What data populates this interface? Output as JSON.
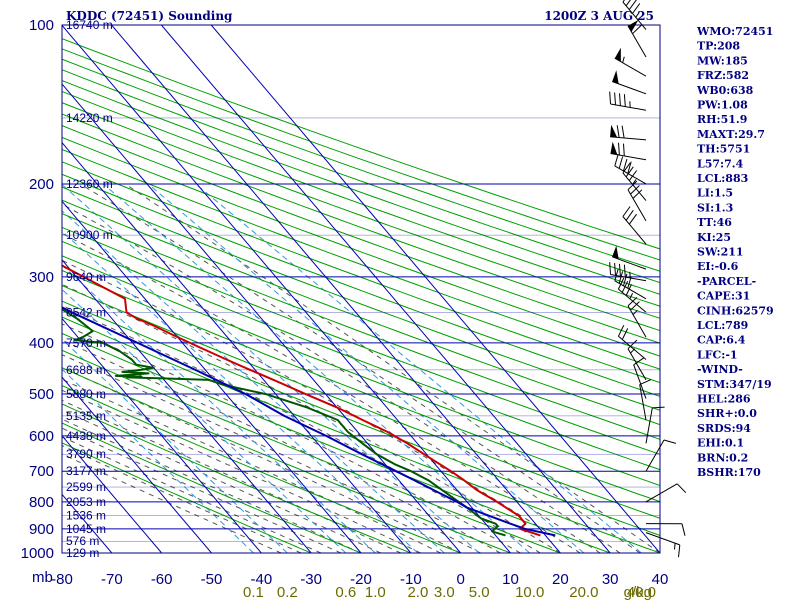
{
  "chart_data": {
    "type": "line",
    "title": "KDDC (72451) Sounding",
    "valid_time": "1200Z  3 AUG 25",
    "pressure_unit_label": "mb",
    "mixing_unit_label": "g/kg",
    "y_axis": {
      "scale": "log",
      "range": [
        1000,
        100
      ]
    },
    "x_axis": {
      "range": [
        -80,
        40
      ]
    },
    "pressure_ticks": [
      "100",
      "200",
      "300",
      "400",
      "500",
      "600",
      "700",
      "800",
      "900",
      "1000"
    ],
    "pressure_values": [
      100,
      200,
      300,
      400,
      500,
      600,
      700,
      800,
      900,
      1000
    ],
    "temperature_ticks": [
      "-80",
      "-70",
      "-60",
      "-50",
      "-40",
      "-30",
      "-20",
      "-10",
      "0",
      "10",
      "20",
      "30",
      "40"
    ],
    "temperature_values": [
      -80,
      -70,
      -60,
      -50,
      -40,
      -30,
      -20,
      -10,
      0,
      10,
      20,
      30,
      40
    ],
    "mixing_ratio_labels": [
      "0.1",
      "0.2",
      "0.6",
      "1.0",
      "2.0",
      "3.0",
      "5.0",
      "10.0",
      "20.0",
      "40.0"
    ],
    "mixing_ratio_values": [
      0.1,
      0.2,
      0.6,
      1.0,
      2.0,
      3.0,
      5.0,
      10.0,
      20.0,
      40.0
    ],
    "height_labels": [
      {
        "p": 100,
        "text": "16740 m"
      },
      {
        "p": 150,
        "text": "14220 m"
      },
      {
        "p": 200,
        "text": "12360 m"
      },
      {
        "p": 250,
        "text": "10900 m"
      },
      {
        "p": 300,
        "text": "9640 m"
      },
      {
        "p": 350,
        "text": "8542 m"
      },
      {
        "p": 400,
        "text": "7570 m"
      },
      {
        "p": 450,
        "text": "6688 m"
      },
      {
        "p": 500,
        "text": "5880 m"
      },
      {
        "p": 550,
        "text": "5135 m"
      },
      {
        "p": 600,
        "text": "4438 m"
      },
      {
        "p": 650,
        "text": "3790 m"
      },
      {
        "p": 700,
        "text": "3177 m"
      },
      {
        "p": 750,
        "text": "2599 m"
      },
      {
        "p": 800,
        "text": "2053 m"
      },
      {
        "p": 850,
        "text": "1536 m"
      },
      {
        "p": 900,
        "text": "1045 m"
      },
      {
        "p": 950,
        "text": "576 m"
      },
      {
        "p": 1000,
        "text": "129 m"
      }
    ],
    "series": [
      {
        "key": "temperature",
        "color": "#cc0000",
        "points": [
          [
            926,
            19
          ],
          [
            900,
            16
          ],
          [
            880,
            18
          ],
          [
            850,
            18
          ],
          [
            800,
            16
          ],
          [
            760,
            14
          ],
          [
            725,
            13
          ],
          [
            700,
            12
          ],
          [
            660,
            10
          ],
          [
            620,
            8
          ],
          [
            590,
            6
          ],
          [
            560,
            3
          ],
          [
            530,
            0
          ],
          [
            500,
            -4
          ],
          [
            470,
            -8
          ],
          [
            450,
            -11
          ],
          [
            430,
            -14
          ],
          [
            410,
            -17
          ],
          [
            390,
            -20
          ],
          [
            370,
            -23
          ],
          [
            360,
            -25
          ],
          [
            350,
            -26
          ],
          [
            330,
            -24
          ],
          [
            310,
            -27
          ],
          [
            285,
            -31
          ],
          [
            260,
            -34
          ],
          [
            240,
            -38
          ],
          [
            220,
            -43
          ],
          [
            205,
            -46
          ],
          [
            200,
            -50
          ],
          [
            190,
            -50
          ],
          [
            175,
            -51
          ],
          [
            160,
            -54
          ],
          [
            145,
            -56
          ],
          [
            130,
            -60
          ],
          [
            115,
            -62
          ],
          [
            100,
            -61
          ]
        ]
      },
      {
        "key": "dewpoint",
        "color": "#005500",
        "points": [
          [
            926,
            12
          ],
          [
            910,
            10
          ],
          [
            890,
            12
          ],
          [
            880,
            12
          ],
          [
            860,
            10
          ],
          [
            820,
            9
          ],
          [
            790,
            8
          ],
          [
            760,
            7
          ],
          [
            730,
            6
          ],
          [
            700,
            4
          ],
          [
            680,
            2
          ],
          [
            650,
            0
          ],
          [
            620,
            -1
          ],
          [
            590,
            -2
          ],
          [
            560,
            -2
          ],
          [
            530,
            -6
          ],
          [
            500,
            -12
          ],
          [
            480,
            -19
          ],
          [
            470,
            -21
          ],
          [
            467,
            -30
          ],
          [
            465,
            -37
          ],
          [
            464,
            -34
          ],
          [
            462,
            -39
          ],
          [
            460,
            -36
          ],
          [
            457,
            -32
          ],
          [
            454,
            -37
          ],
          [
            450,
            -33
          ],
          [
            446,
            -30
          ],
          [
            440,
            -33
          ],
          [
            430,
            -33
          ],
          [
            415,
            -34
          ],
          [
            400,
            -36
          ],
          [
            395,
            -41
          ],
          [
            390,
            -39
          ],
          [
            380,
            -36
          ],
          [
            360,
            -37
          ],
          [
            340,
            -39
          ],
          [
            320,
            -38
          ],
          [
            300,
            -44
          ],
          [
            290,
            -46
          ],
          [
            270,
            -50
          ],
          [
            250,
            -54
          ],
          [
            230,
            -58
          ],
          [
            215,
            -64
          ],
          [
            200,
            -68
          ],
          [
            185,
            -76
          ],
          [
            165,
            -82
          ],
          [
            150,
            -87
          ]
        ]
      },
      {
        "key": "parcel",
        "color": "#0000b0",
        "points": [
          [
            926,
            22
          ],
          [
            900,
            17
          ],
          [
            870,
            14
          ],
          [
            850,
            12
          ],
          [
            820,
            9
          ],
          [
            800,
            8
          ],
          [
            770,
            6
          ],
          [
            740,
            4
          ],
          [
            700,
            1
          ],
          [
            650,
            -3
          ],
          [
            600,
            -7
          ],
          [
            550,
            -12
          ],
          [
            500,
            -16
          ],
          [
            450,
            -22
          ],
          [
            400,
            -29
          ],
          [
            350,
            -37
          ],
          [
            300,
            -45
          ],
          [
            250,
            -56
          ],
          [
            200,
            -67
          ],
          [
            175,
            -75
          ],
          [
            150,
            -85
          ]
        ]
      }
    ],
    "wind_barbs": [
      {
        "p": 102,
        "dir": 320,
        "spd": 45
      },
      {
        "p": 115,
        "dir": 330,
        "spd": 60
      },
      {
        "p": 125,
        "dir": 300,
        "spd": 55
      },
      {
        "p": 135,
        "dir": 290,
        "spd": 50
      },
      {
        "p": 145,
        "dir": 280,
        "spd": 45
      },
      {
        "p": 165,
        "dir": 275,
        "spd": 70
      },
      {
        "p": 180,
        "dir": 280,
        "spd": 70
      },
      {
        "p": 200,
        "dir": 300,
        "spd": 40
      },
      {
        "p": 215,
        "dir": 320,
        "spd": 35
      },
      {
        "p": 235,
        "dir": 330,
        "spd": 30
      },
      {
        "p": 260,
        "dir": 320,
        "spd": 30
      },
      {
        "p": 290,
        "dir": 290,
        "spd": 50
      },
      {
        "p": 305,
        "dir": 280,
        "spd": 45
      },
      {
        "p": 330,
        "dir": 300,
        "spd": 40
      },
      {
        "p": 350,
        "dir": 310,
        "spd": 35
      },
      {
        "p": 390,
        "dir": 330,
        "spd": 25
      },
      {
        "p": 430,
        "dir": 310,
        "spd": 20
      },
      {
        "p": 470,
        "dir": 330,
        "spd": 15
      },
      {
        "p": 510,
        "dir": 340,
        "spd": 10
      },
      {
        "p": 560,
        "dir": 350,
        "spd": 10
      },
      {
        "p": 620,
        "dir": 10,
        "spd": 10
      },
      {
        "p": 700,
        "dir": 30,
        "spd": 10
      },
      {
        "p": 800,
        "dir": 60,
        "spd": 10
      },
      {
        "p": 880,
        "dir": 90,
        "spd": 10
      },
      {
        "p": 915,
        "dir": 110,
        "spd": 15
      }
    ],
    "indices": [
      "WMO:72451",
      "TP:208",
      "MW:185",
      "FRZ:582",
      "WB0:638",
      "PW:1.08",
      "RH:51.9",
      "MAXT:29.7",
      "TH:5751",
      "L57:7.4",
      "LCL:883",
      "LI:1.5",
      "SI:1.3",
      "TT:46",
      "KI:25",
      "SW:211",
      "EI:-0.6",
      "-PARCEL-",
      "CAPE:31",
      "CINH:62579",
      "LCL:789",
      "CAP:6.4",
      "LFC:-1",
      "-WIND-",
      "STM:347/19",
      "HEL:286",
      "SHR+:0.0",
      "SRDS:94",
      "EHI:0.1",
      "BRN:0.2",
      "BSHR:170"
    ],
    "colors": {
      "frame": "#000080",
      "isotherm": "#0000b0",
      "isobar": "#0000b0",
      "dry_adiabat": "#00a000",
      "moist_adiabat": "#555555",
      "mixing_ratio": "#3399dd",
      "mixing_label": "#6b6b00",
      "barb": "#000000"
    }
  }
}
